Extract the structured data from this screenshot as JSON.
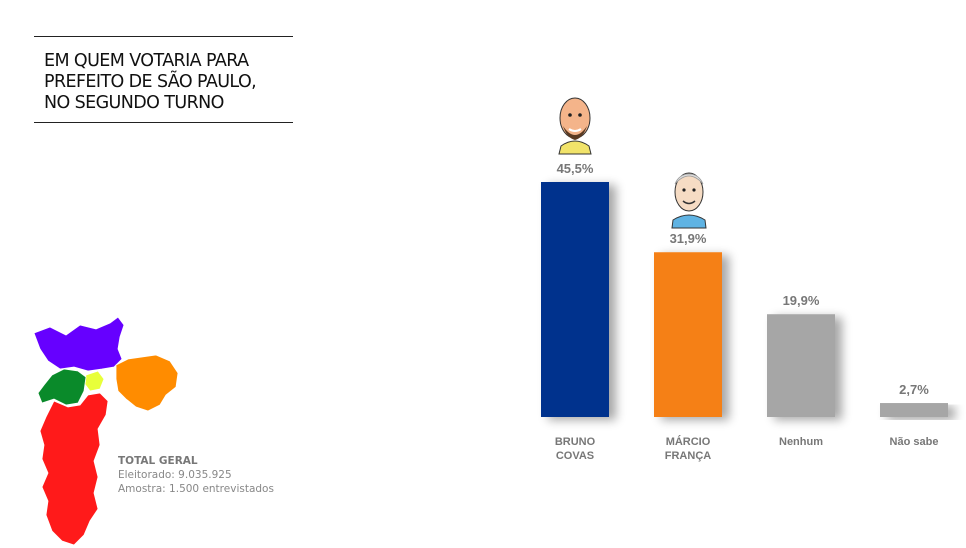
{
  "title": {
    "lines": [
      "EM QUEM VOTARIA PARA",
      "PREFEITO DE SÃO PAULO,",
      "NO SEGUNDO TURNO"
    ]
  },
  "info": {
    "heading": "TOTAL GERAL",
    "electorate": "Eleitorado: 9.035.925",
    "sample": "Amostra: 1.500 entrevistados"
  },
  "map_colors": {
    "north": "#6600ff",
    "west": "#0a8a2a",
    "center": "#e8ff3a",
    "east": "#ff8c00",
    "south": "#ff1a1a"
  },
  "chart_data": {
    "type": "bar",
    "categories": [
      [
        "BRUNO",
        "COVAS"
      ],
      [
        "MÁRCIO",
        "FRANÇA"
      ],
      [
        "Nenhum"
      ],
      [
        "Não sabe"
      ]
    ],
    "values": [
      45.5,
      31.9,
      19.9,
      2.7
    ],
    "value_labels": [
      "45,5%",
      "31,9%",
      "19,9%",
      "2,7%"
    ],
    "colors": [
      "#00338d",
      "#f58012",
      "#a6a6a6",
      "#a6a6a6"
    ],
    "ylim": [
      0,
      50
    ],
    "grid": false
  }
}
